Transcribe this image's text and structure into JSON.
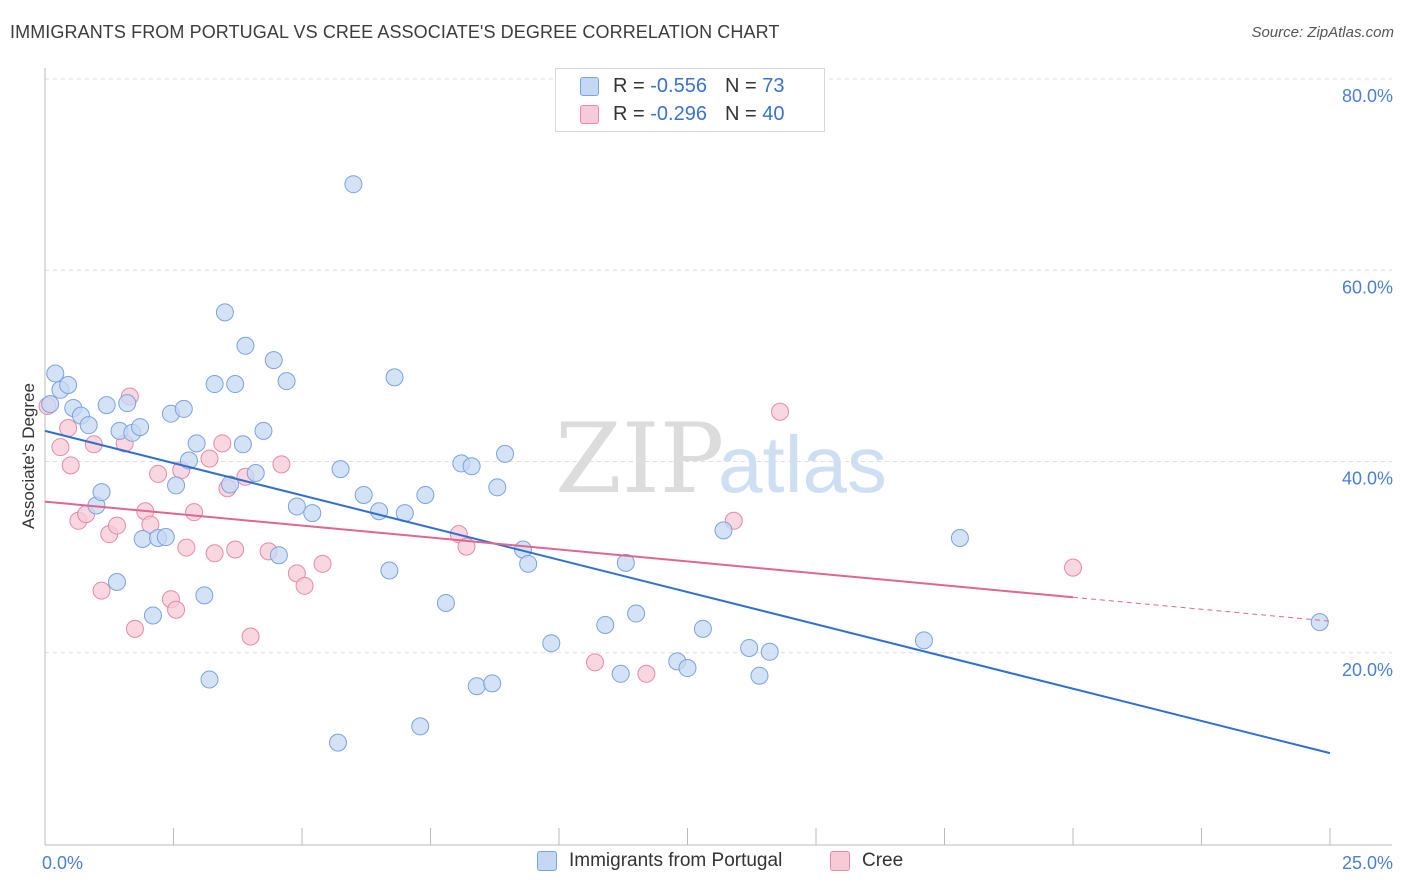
{
  "header": {
    "title": "IMMIGRANTS FROM PORTUGAL VS CREE ASSOCIATE'S DEGREE CORRELATION CHART",
    "source": "Source: ZipAtlas.com"
  },
  "watermark": {
    "zip": "ZIP",
    "atlas": "atlas"
  },
  "legend": {
    "rows": [
      {
        "r_label": "R = ",
        "r_value": "-0.556",
        "n_label": "N = ",
        "n_value": "73"
      },
      {
        "r_label": "R = ",
        "r_value": "-0.296",
        "n_label": "N = ",
        "n_value": "40"
      }
    ]
  },
  "bottom_legend": {
    "items": [
      {
        "label": "Immigrants from Portugal"
      },
      {
        "label": "Cree"
      }
    ]
  },
  "colors": {
    "blue_fill": "#c5d8f3",
    "blue_stroke": "#7aa3e0",
    "blue_line": "#2f6fd1",
    "pink_fill": "#f7cad7",
    "pink_stroke": "#e88aa7",
    "pink_line": "#e0658f",
    "grid": "#dddddd",
    "tick_text": "#4a7fd4"
  },
  "chart_data": {
    "type": "scatter",
    "title": "IMMIGRANTS FROM PORTUGAL VS CREE ASSOCIATE'S DEGREE CORRELATION CHART",
    "xlabel": "",
    "ylabel": "Associate's Degree",
    "xlim": [
      0,
      25
    ],
    "ylim": [
      0,
      82
    ],
    "x_tick_labels": [
      "0.0%",
      "25.0%"
    ],
    "y_ticks": [
      20,
      40,
      60,
      80
    ],
    "y_tick_labels": [
      "20.0%",
      "40.0%",
      "60.0%",
      "80.0%"
    ],
    "grid": true,
    "legend_position": "top-center",
    "series": [
      {
        "name": "Immigrants from Portugal",
        "color": "#7aa3e0",
        "trend": {
          "x": [
            0,
            25
          ],
          "y": [
            43.2,
            9.5
          ]
        },
        "points": [
          [
            0.2,
            49.2
          ],
          [
            0.3,
            47.5
          ],
          [
            0.45,
            48.0
          ],
          [
            0.55,
            45.6
          ],
          [
            0.7,
            44.8
          ],
          [
            0.85,
            43.8
          ],
          [
            1.0,
            35.4
          ],
          [
            1.1,
            36.8
          ],
          [
            1.2,
            45.9
          ],
          [
            1.4,
            27.4
          ],
          [
            1.45,
            43.2
          ],
          [
            1.6,
            46.1
          ],
          [
            1.7,
            43.0
          ],
          [
            1.85,
            43.6
          ],
          [
            1.9,
            31.9
          ],
          [
            2.1,
            23.9
          ],
          [
            2.2,
            32.0
          ],
          [
            2.35,
            32.1
          ],
          [
            2.45,
            45.0
          ],
          [
            2.55,
            37.5
          ],
          [
            2.7,
            45.5
          ],
          [
            2.8,
            40.1
          ],
          [
            2.95,
            41.9
          ],
          [
            3.1,
            26.0
          ],
          [
            3.2,
            17.2
          ],
          [
            3.3,
            48.1
          ],
          [
            3.5,
            55.6
          ],
          [
            3.6,
            37.6
          ],
          [
            3.7,
            48.1
          ],
          [
            3.85,
            41.8
          ],
          [
            3.9,
            52.1
          ],
          [
            4.1,
            38.8
          ],
          [
            4.25,
            43.2
          ],
          [
            4.45,
            50.6
          ],
          [
            4.55,
            30.2
          ],
          [
            4.7,
            48.4
          ],
          [
            4.9,
            35.3
          ],
          [
            5.2,
            34.6
          ],
          [
            5.7,
            10.6
          ],
          [
            5.75,
            39.2
          ],
          [
            6.0,
            69.0
          ],
          [
            6.2,
            36.5
          ],
          [
            6.5,
            34.8
          ],
          [
            6.7,
            28.6
          ],
          [
            6.8,
            48.8
          ],
          [
            7.0,
            34.6
          ],
          [
            7.3,
            12.3
          ],
          [
            7.4,
            36.5
          ],
          [
            7.8,
            25.2
          ],
          [
            8.1,
            39.8
          ],
          [
            8.3,
            39.5
          ],
          [
            8.4,
            16.5
          ],
          [
            8.7,
            16.8
          ],
          [
            8.8,
            37.3
          ],
          [
            8.95,
            40.8
          ],
          [
            9.3,
            30.8
          ],
          [
            9.4,
            29.3
          ],
          [
            9.85,
            21.0
          ],
          [
            10.9,
            22.9
          ],
          [
            11.2,
            17.8
          ],
          [
            11.3,
            29.4
          ],
          [
            11.5,
            24.1
          ],
          [
            12.3,
            19.1
          ],
          [
            12.5,
            18.4
          ],
          [
            12.8,
            22.5
          ],
          [
            13.2,
            32.8
          ],
          [
            13.7,
            20.5
          ],
          [
            13.9,
            17.6
          ],
          [
            14.1,
            20.1
          ],
          [
            17.1,
            21.3
          ],
          [
            17.8,
            32.0
          ],
          [
            24.8,
            23.2
          ],
          [
            0.1,
            46.0
          ]
        ]
      },
      {
        "name": "Cree",
        "color": "#e88aa7",
        "trend": {
          "x": [
            0,
            20
          ],
          "y": [
            35.8,
            25.8
          ]
        },
        "trend_dashed": {
          "x": [
            20,
            25
          ],
          "y": [
            25.8,
            23.3
          ]
        },
        "points": [
          [
            0.05,
            45.8
          ],
          [
            0.3,
            41.5
          ],
          [
            0.45,
            43.5
          ],
          [
            0.5,
            39.6
          ],
          [
            0.65,
            33.8
          ],
          [
            0.8,
            34.5
          ],
          [
            0.95,
            41.8
          ],
          [
            1.1,
            26.5
          ],
          [
            1.25,
            32.4
          ],
          [
            1.4,
            33.3
          ],
          [
            1.55,
            41.9
          ],
          [
            1.65,
            46.8
          ],
          [
            1.75,
            22.5
          ],
          [
            1.95,
            34.8
          ],
          [
            2.05,
            33.4
          ],
          [
            2.2,
            38.7
          ],
          [
            2.45,
            25.6
          ],
          [
            2.55,
            24.5
          ],
          [
            2.65,
            39.1
          ],
          [
            2.75,
            31.0
          ],
          [
            2.9,
            34.7
          ],
          [
            3.2,
            40.3
          ],
          [
            3.3,
            30.4
          ],
          [
            3.45,
            41.9
          ],
          [
            3.55,
            37.2
          ],
          [
            3.7,
            30.8
          ],
          [
            3.9,
            38.4
          ],
          [
            4.0,
            21.7
          ],
          [
            4.35,
            30.6
          ],
          [
            4.6,
            39.7
          ],
          [
            4.9,
            28.3
          ],
          [
            5.05,
            27.0
          ],
          [
            5.4,
            29.3
          ],
          [
            8.05,
            32.4
          ],
          [
            8.2,
            31.1
          ],
          [
            10.7,
            19.0
          ],
          [
            11.7,
            17.8
          ],
          [
            13.4,
            33.8
          ],
          [
            14.3,
            45.2
          ],
          [
            20.0,
            28.9
          ]
        ]
      }
    ]
  }
}
